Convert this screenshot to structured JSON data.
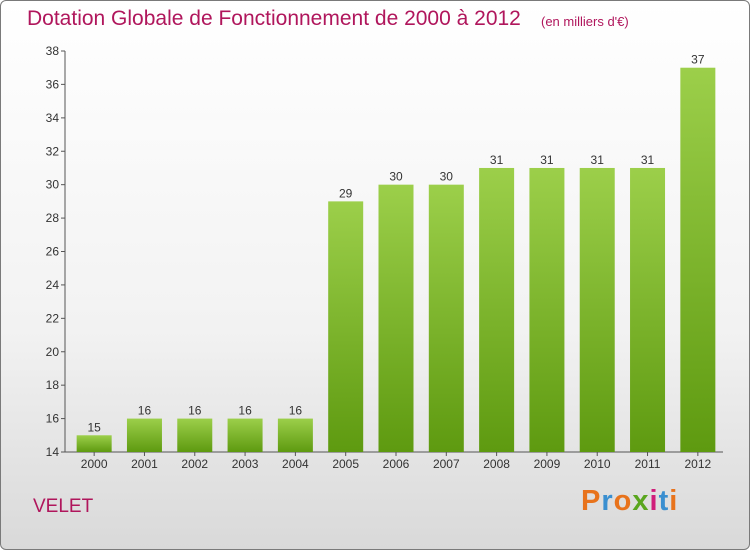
{
  "chart_data": {
    "type": "bar",
    "title": "Dotation Globale de Fonctionnement de 2000 à 2012",
    "subtitle": "(en milliers d'€)",
    "categories": [
      "2000",
      "2001",
      "2002",
      "2003",
      "2004",
      "2005",
      "2006",
      "2007",
      "2008",
      "2009",
      "2010",
      "2011",
      "2012"
    ],
    "values": [
      15,
      16,
      16,
      16,
      16,
      29,
      30,
      30,
      31,
      31,
      31,
      31,
      37
    ],
    "ylim": [
      14,
      38
    ],
    "yticks": [
      14,
      16,
      18,
      20,
      22,
      24,
      26,
      28,
      30,
      32,
      34,
      36,
      38
    ],
    "grid": false,
    "bar_color": "#7ab530"
  },
  "footer": {
    "commune": "VELET",
    "logo": "Proxiti"
  },
  "colors": {
    "title": "#b0165c",
    "logo_letters": [
      "#e8731c",
      "#3a8fd0",
      "#e8731c",
      "#5aa61e",
      "#d01e7a",
      "#3a8fd0",
      "#e8731c"
    ]
  }
}
